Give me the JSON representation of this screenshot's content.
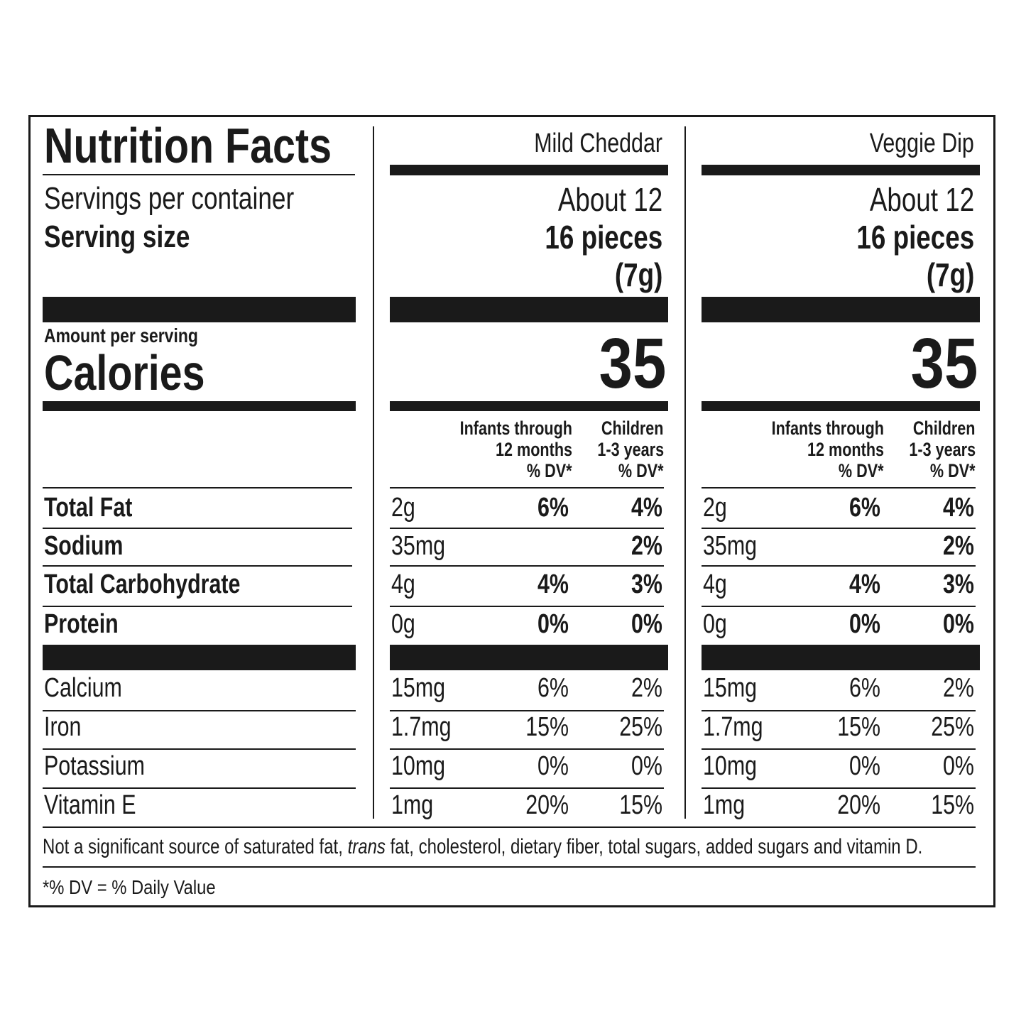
{
  "title": "Nutrition Facts",
  "left": {
    "servings_label": "Servings per container",
    "serving_size_label": "Serving size",
    "amount_per_serving": "Amount per serving",
    "calories_label": "Calories"
  },
  "columns": [
    {
      "name": "Mild Cheddar",
      "servings": "About 12",
      "serving_size": "16 pieces",
      "serving_weight": "(7g)",
      "calories": "35",
      "dv_head_1": [
        "Infants through",
        "12 months",
        "% DV*"
      ],
      "dv_head_2": [
        "Children",
        "1-3 years",
        "% DV*"
      ],
      "rows": [
        {
          "amount": "2g",
          "dv1": "6%",
          "dv2": "4%"
        },
        {
          "amount": "35mg",
          "dv1": "",
          "dv2": "2%"
        },
        {
          "amount": "4g",
          "dv1": "4%",
          "dv2": "3%"
        },
        {
          "amount": "0g",
          "dv1": "0%",
          "dv2": "0%"
        },
        {
          "amount": "15mg",
          "dv1": "6%",
          "dv2": "2%"
        },
        {
          "amount": "1.7mg",
          "dv1": "15%",
          "dv2": "25%"
        },
        {
          "amount": "10mg",
          "dv1": "0%",
          "dv2": "0%"
        },
        {
          "amount": "1mg",
          "dv1": "20%",
          "dv2": "15%"
        }
      ]
    },
    {
      "name": "Veggie Dip",
      "servings": "About 12",
      "serving_size": "16 pieces",
      "serving_weight": "(7g)",
      "calories": "35",
      "dv_head_1": [
        "Infants through",
        "12 months",
        "% DV*"
      ],
      "dv_head_2": [
        "Children",
        "1-3 years",
        "% DV*"
      ],
      "rows": [
        {
          "amount": "2g",
          "dv1": "6%",
          "dv2": "4%"
        },
        {
          "amount": "35mg",
          "dv1": "",
          "dv2": "2%"
        },
        {
          "amount": "4g",
          "dv1": "4%",
          "dv2": "3%"
        },
        {
          "amount": "0g",
          "dv1": "0%",
          "dv2": "0%"
        },
        {
          "amount": "15mg",
          "dv1": "6%",
          "dv2": "2%"
        },
        {
          "amount": "1.7mg",
          "dv1": "15%",
          "dv2": "25%"
        },
        {
          "amount": "10mg",
          "dv1": "0%",
          "dv2": "0%"
        },
        {
          "amount": "1mg",
          "dv1": "20%",
          "dv2": "15%"
        }
      ]
    }
  ],
  "nutrients": [
    {
      "name": "Total Fat",
      "bold": true
    },
    {
      "name": "Sodium",
      "bold": true
    },
    {
      "name": "Total Carbohydrate",
      "bold": true
    },
    {
      "name": "Protein",
      "bold": true
    },
    {
      "name": "Calcium",
      "bold": false
    },
    {
      "name": "Iron",
      "bold": false
    },
    {
      "name": "Potassium",
      "bold": false
    },
    {
      "name": "Vitamin E",
      "bold": false
    }
  ],
  "footnote": {
    "part1": "Not a significant source of saturated fat, ",
    "italic": "trans",
    "part2": " fat, cholesterol, dietary fiber, total sugars, added sugars and vitamin D.",
    "dv_note": "*% DV = % Daily Value"
  }
}
